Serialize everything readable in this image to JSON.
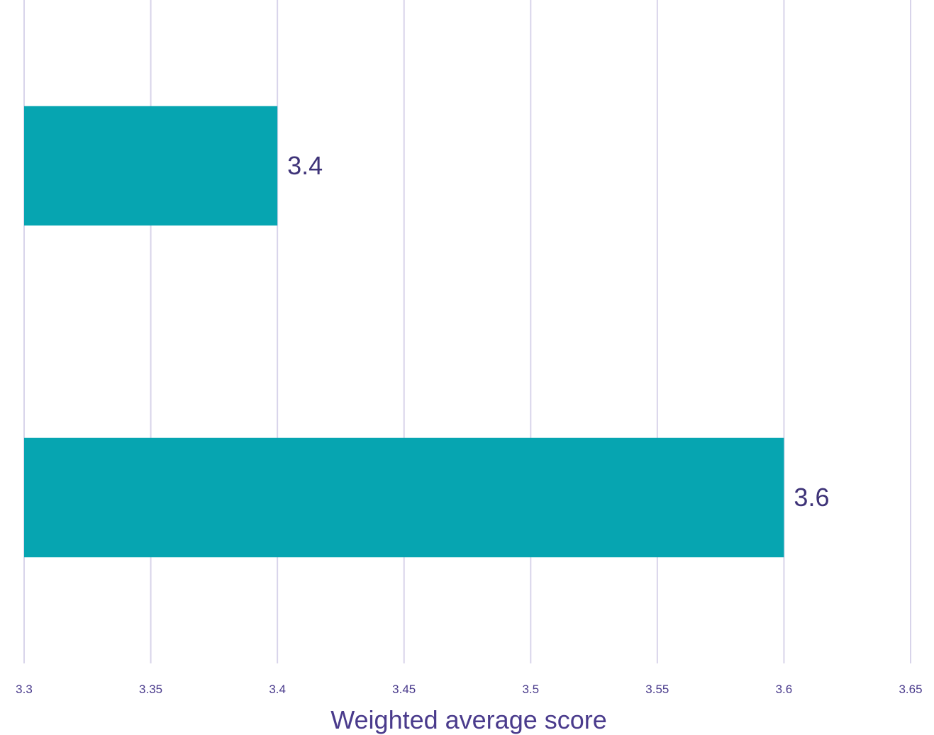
{
  "chart_data": {
    "type": "bar",
    "orientation": "horizontal",
    "categories": [
      "",
      ""
    ],
    "values": [
      3.4,
      3.6
    ],
    "data_labels": [
      "3.4",
      "3.6"
    ],
    "title": "",
    "xlabel": "Weighted average score",
    "ylabel": "",
    "xlim": [
      3.3,
      3.65
    ],
    "xticks": [
      3.3,
      3.35,
      3.4,
      3.45,
      3.5,
      3.55,
      3.6,
      3.65
    ],
    "xtick_labels": [
      "3.3",
      "3.35",
      "3.4",
      "3.45",
      "3.5",
      "3.55",
      "3.6",
      "3.65"
    ],
    "grid": "vertical",
    "legend": "none",
    "colors": {
      "bar": "#06a5b1",
      "grid": "#d8d4ea",
      "text": "#4a3b8c"
    }
  }
}
